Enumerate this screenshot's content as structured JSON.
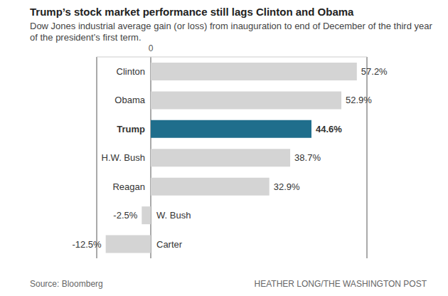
{
  "chart_data": {
    "type": "bar",
    "orientation": "horizontal",
    "title": "Trump’s stock market performance still lags Clinton and Obama",
    "subtitle": "Dow Jones industrial average gain (or loss) from inauguration to end of December of the third year of the president’s first term.",
    "categories": [
      "Clinton",
      "Obama",
      "Trump",
      "H.W. Bush",
      "Reagan",
      "W. Bush",
      "Carter"
    ],
    "values": [
      57.2,
      52.9,
      44.6,
      38.7,
      32.9,
      -2.5,
      -12.5
    ],
    "value_labels": [
      "57.2%",
      "52.9%",
      "44.6%",
      "38.7%",
      "32.9%",
      "-2.5%",
      "-12.5%"
    ],
    "colors": [
      "#d4d4d4",
      "#d4d4d4",
      "#1f6e8c",
      "#d4d4d4",
      "#d4d4d4",
      "#d4d4d4",
      "#d4d4d4"
    ],
    "xlim": [
      -15,
      60
    ],
    "xticks": [
      0
    ],
    "grid": true,
    "data_labels": true,
    "source": "Source: Bloomberg",
    "credit": "HEATHER LONG/THE WASHINGTON POST"
  }
}
